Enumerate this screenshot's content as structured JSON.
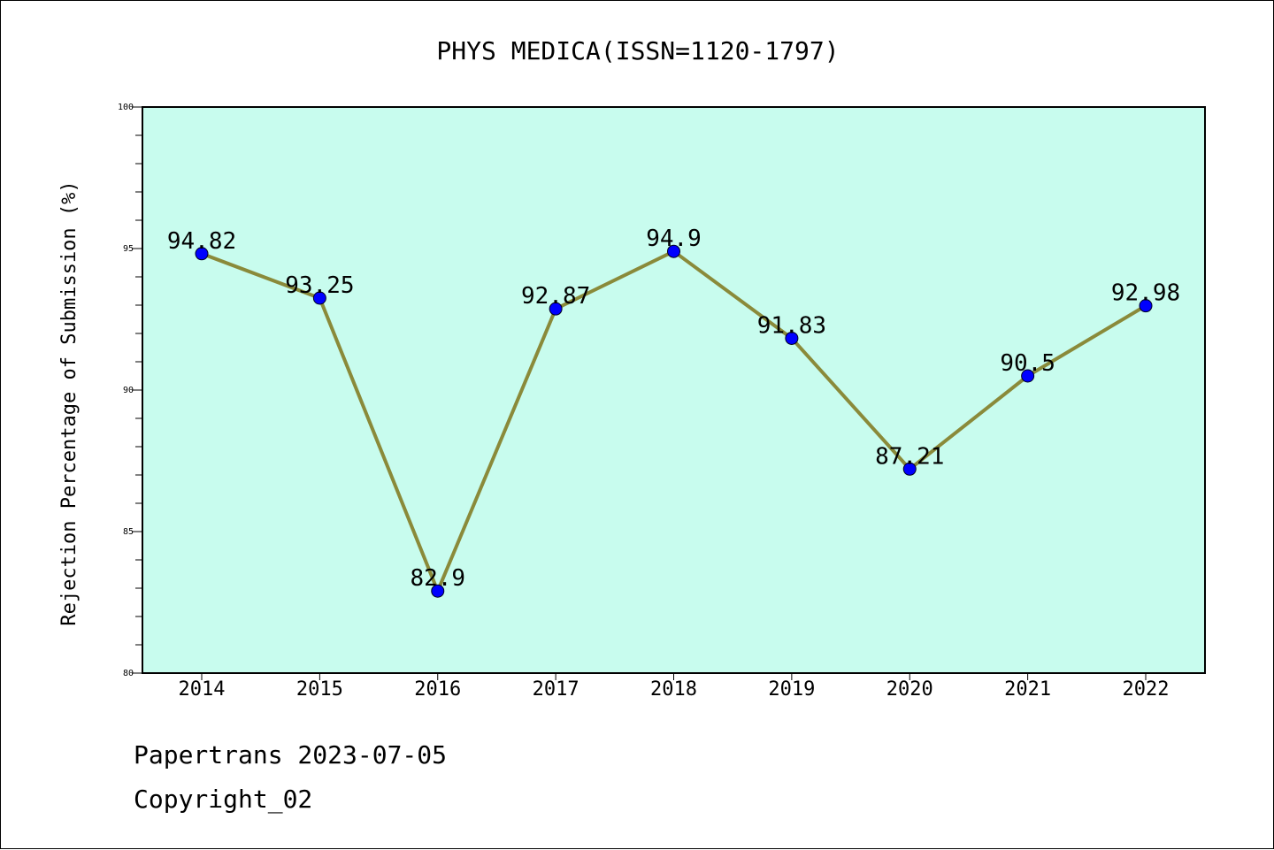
{
  "chart_data": {
    "type": "line",
    "title": "PHYS MEDICA(ISSN=1120-1797)",
    "xlabel": "",
    "ylabel": "Rejection Percentage of Submission (%)",
    "categories": [
      "2014",
      "2015",
      "2016",
      "2017",
      "2018",
      "2019",
      "2020",
      "2021",
      "2022"
    ],
    "series": [
      {
        "values": [
          94.82,
          93.25,
          82.9,
          92.87,
          94.9,
          91.83,
          87.21,
          90.5,
          92.98
        ],
        "data_labels": [
          "94.82",
          "93.25",
          "82.9",
          "92.87",
          "94.9",
          "91.83",
          "87.21",
          "90.5",
          "92.98"
        ]
      }
    ],
    "ylim": [
      80,
      100
    ],
    "yticks": [
      "80",
      "85",
      "90",
      "95",
      "100"
    ],
    "grid": false,
    "legend": "none",
    "colors": {
      "plot_background": "#c8fcee",
      "line": "#8a8a3a",
      "marker": "#0000ff"
    }
  },
  "footer": {
    "line1": "Papertrans 2023-07-05",
    "line2": "Copyright_02"
  }
}
